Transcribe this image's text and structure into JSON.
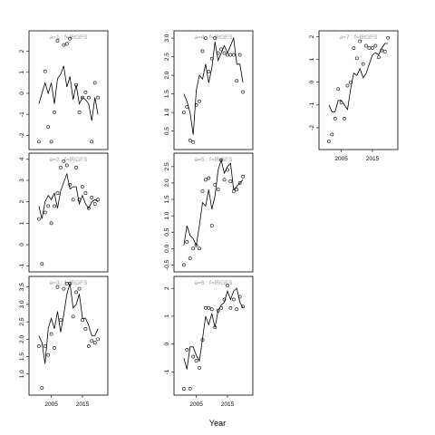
{
  "chart_data": {
    "type": "multi-panel line+scatter",
    "xlabel": "Year",
    "panels": [
      {
        "title": "a=1 : f=IRGFS",
        "ylim": [
          -2.5,
          2.8
        ],
        "yticks": [
          -2,
          -1,
          0,
          1,
          2
        ],
        "xticks": [],
        "line": {
          "x": [
            2001,
            2002,
            2003,
            2004,
            2005,
            2006,
            2007,
            2008,
            2009,
            2010,
            2011,
            2012,
            2013,
            2014,
            2015,
            2016,
            2017,
            2018,
            2019,
            2020
          ],
          "y": [
            -0.5,
            0,
            0.5,
            0,
            0.5,
            -0.5,
            0.7,
            0.9,
            1.3,
            0.3,
            0.8,
            -0.3,
            0.4,
            -0.5,
            -0.2,
            -0.3,
            -0.5,
            -1.3,
            -0.2,
            -1.0
          ]
        },
        "points": {
          "x": [
            2001,
            2003,
            2004,
            2005,
            2006,
            2007,
            2009,
            2010,
            2011,
            2013,
            2014,
            2015,
            2016,
            2017,
            2018,
            2019,
            2020
          ],
          "y": [
            -2.3,
            1.05,
            -1.6,
            -2.3,
            -0.9,
            2.5,
            2.3,
            2.35,
            2.6,
            0.4,
            -0.9,
            -0.2,
            0.05,
            -0.2,
            -2.3,
            0.5,
            -0.2
          ]
        }
      },
      {
        "title": "a=4 : f=IRGFS",
        "ylim": [
          0.1,
          3.1
        ],
        "yticks": [
          0.5,
          1.0,
          1.5,
          2.0,
          2.5,
          3.0
        ],
        "xticks": [],
        "line": {
          "x": [
            2001,
            2002,
            2003,
            2004,
            2005,
            2006,
            2007,
            2008,
            2009,
            2010,
            2011,
            2012,
            2013,
            2014,
            2015,
            2016,
            2017,
            2018,
            2019,
            2020
          ],
          "y": [
            1.5,
            1.3,
            1.0,
            0.4,
            1.6,
            2.0,
            1.9,
            2.3,
            1.8,
            2.2,
            2.9,
            2.4,
            2.6,
            2.8,
            2.6,
            2.8,
            3.0,
            2.3,
            2.3,
            1.8
          ]
        },
        "points": {
          "x": [
            2001,
            2002,
            2003,
            2004,
            2005,
            2006,
            2007,
            2008,
            2009,
            2010,
            2011,
            2012,
            2013,
            2014,
            2015,
            2016,
            2017,
            2018,
            2019,
            2020
          ],
          "y": [
            1.0,
            1.15,
            0.25,
            0.2,
            1.2,
            1.3,
            2.65,
            3.0,
            2.1,
            2.45,
            3.0,
            2.6,
            2.7,
            2.6,
            2.55,
            2.55,
            2.55,
            1.85,
            2.55,
            1.55
          ]
        }
      },
      {
        "title": "a=7 : f=IRGFS",
        "ylim": [
          -2.8,
          2.1
        ],
        "yticks": [
          -2,
          -1,
          0,
          1,
          2
        ],
        "xticks": [
          2005,
          2015
        ],
        "line": {
          "x": [
            2001,
            2002,
            2003,
            2004,
            2005,
            2006,
            2007,
            2008,
            2009,
            2010,
            2011,
            2012,
            2013,
            2014,
            2015,
            2016,
            2017,
            2018,
            2019,
            2020
          ],
          "y": [
            -1.0,
            -1.3,
            -1.3,
            -0.8,
            -0.8,
            -1.0,
            -1.2,
            -0.3,
            0.4,
            0.3,
            0.6,
            0.2,
            0.4,
            0.8,
            1.2,
            1.3,
            1.2,
            1.5,
            1.7,
            1.7
          ]
        },
        "points": {
          "x": [
            2001,
            2002,
            2003,
            2004,
            2005,
            2006,
            2007,
            2008,
            2009,
            2010,
            2011,
            2012,
            2013,
            2014,
            2015,
            2016,
            2017,
            2018,
            2019,
            2020
          ],
          "y": [
            -2.6,
            -2.3,
            -1.6,
            -0.3,
            -0.9,
            -1.6,
            -0.15,
            0.0,
            1.5,
            1.05,
            1.8,
            0.8,
            1.6,
            1.5,
            1.5,
            1.6,
            1.1,
            1.4,
            1.35,
            1.95
          ]
        }
      },
      {
        "title": "a=2 : f=IRGFS",
        "ylim": [
          -1.1,
          4.1
        ],
        "yticks": [
          -1,
          0,
          1,
          2,
          3,
          4
        ],
        "xticks": [],
        "line": {
          "x": [
            2001,
            2002,
            2003,
            2004,
            2005,
            2006,
            2007,
            2008,
            2009,
            2010,
            2011,
            2012,
            2013,
            2014,
            2015,
            2016,
            2017,
            2018,
            2019,
            2020
          ],
          "y": [
            1.8,
            1.2,
            2.0,
            2.3,
            2.1,
            2.4,
            1.7,
            2.5,
            2.9,
            3.3,
            2.6,
            2.7,
            2.7,
            1.9,
            2.3,
            1.9,
            1.7,
            2.0,
            2.1,
            2.0
          ]
        },
        "points": {
          "x": [
            2001,
            2002,
            2003,
            2004,
            2005,
            2006,
            2007,
            2008,
            2009,
            2010,
            2011,
            2012,
            2013,
            2014,
            2015,
            2016,
            2017,
            2018,
            2019,
            2020
          ],
          "y": [
            1.2,
            -0.9,
            1.5,
            1.8,
            1.0,
            1.8,
            2.4,
            3.6,
            3.9,
            3.7,
            2.8,
            2.1,
            3.6,
            2.1,
            2.7,
            2.4,
            1.7,
            2.2,
            1.9,
            2.1
          ]
        }
      },
      {
        "title": "a=5 : f=IRGFS",
        "ylim": [
          -0.6,
          2.8
        ],
        "yticks": [
          -0.5,
          0.0,
          0.5,
          1.0,
          1.5,
          2.0,
          2.5
        ],
        "xticks": [],
        "line": {
          "x": [
            2001,
            2002,
            2003,
            2004,
            2005,
            2006,
            2007,
            2008,
            2009,
            2010,
            2011,
            2012,
            2013,
            2014,
            2015,
            2016,
            2017,
            2018,
            2019,
            2020
          ],
          "y": [
            0.1,
            0.7,
            0.4,
            0.3,
            0.1,
            0.7,
            1.4,
            1.3,
            1.8,
            1.2,
            1.6,
            2.4,
            2.7,
            2.3,
            2.5,
            2.6,
            1.8,
            1.9,
            2.0,
            2.1
          ]
        },
        "points": {
          "x": [
            2001,
            2002,
            2003,
            2004,
            2005,
            2006,
            2007,
            2008,
            2009,
            2010,
            2011,
            2012,
            2013,
            2014,
            2015,
            2016,
            2017,
            2018,
            2019,
            2020
          ],
          "y": [
            -0.5,
            0.2,
            -0.3,
            0.0,
            0.1,
            0.0,
            1.75,
            2.1,
            2.15,
            0.7,
            1.95,
            1.8,
            2.7,
            2.1,
            2.4,
            2.05,
            1.75,
            1.8,
            2.0,
            2.2
          ]
        }
      },
      {
        "title": "a=3 : f=IRGFS",
        "ylim": [
          0.5,
          3.7
        ],
        "yticks": [
          1.0,
          1.5,
          2.0,
          2.5,
          3.0,
          3.5
        ],
        "xticks": [
          2005,
          2015
        ],
        "line": {
          "x": [
            2001,
            2002,
            2003,
            2004,
            2005,
            2006,
            2007,
            2008,
            2009,
            2010,
            2011,
            2012,
            2013,
            2014,
            2015,
            2016,
            2017,
            2018,
            2019,
            2020
          ],
          "y": [
            2.1,
            1.9,
            1.3,
            2.3,
            2.6,
            2.3,
            2.8,
            2.2,
            2.7,
            3.3,
            3.6,
            2.9,
            3.0,
            3.3,
            2.6,
            2.6,
            2.4,
            2.1,
            2.1,
            2.3
          ]
        },
        "points": {
          "x": [
            2001,
            2002,
            2003,
            2004,
            2005,
            2006,
            2007,
            2008,
            2009,
            2010,
            2011,
            2012,
            2013,
            2014,
            2015,
            2016,
            2017,
            2018,
            2019,
            2020
          ],
          "y": [
            1.8,
            0.6,
            1.8,
            1.55,
            2.15,
            1.75,
            3.5,
            2.55,
            3.45,
            3.6,
            3.6,
            2.65,
            3.35,
            3.45,
            2.55,
            2.3,
            1.8,
            1.95,
            1.9,
            2.0
          ]
        }
      },
      {
        "title": "a=6 : f=IRGFS",
        "ylim": [
          -1.7,
          2.3
        ],
        "yticks": [
          -1,
          0,
          1,
          2
        ],
        "xticks": [
          2005,
          2015
        ],
        "line": {
          "x": [
            2001,
            2002,
            2003,
            2004,
            2005,
            2006,
            2007,
            2008,
            2009,
            2010,
            2011,
            2012,
            2013,
            2014,
            2015,
            2016,
            2017,
            2018,
            2019,
            2020
          ],
          "y": [
            -0.5,
            -0.9,
            -0.1,
            -0.1,
            -0.4,
            -0.6,
            0.2,
            1.0,
            0.7,
            1.1,
            0.6,
            1.2,
            1.4,
            1.5,
            1.9,
            1.6,
            1.9,
            2.0,
            1.5,
            1.3
          ]
        },
        "points": {
          "x": [
            2001,
            2002,
            2003,
            2004,
            2005,
            2006,
            2007,
            2008,
            2009,
            2010,
            2011,
            2012,
            2013,
            2014,
            2015,
            2016,
            2017,
            2018,
            2019,
            2020
          ],
          "y": [
            -1.6,
            -0.2,
            -1.6,
            -0.45,
            -0.6,
            -0.85,
            0.15,
            1.3,
            1.3,
            1.25,
            0.6,
            1.2,
            1.3,
            1.6,
            2.1,
            1.3,
            1.6,
            1.25,
            1.7,
            1.35
          ]
        }
      }
    ]
  }
}
